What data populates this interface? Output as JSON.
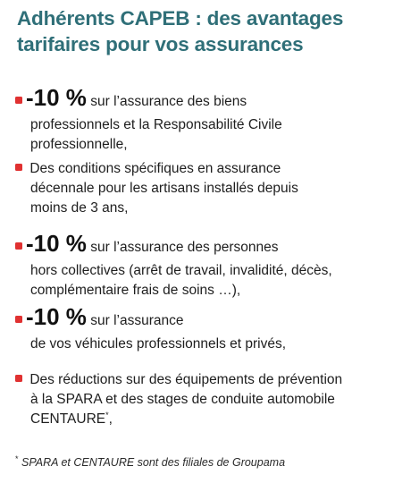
{
  "title": {
    "line1": "Adhérents CAPEB : des avantages",
    "line2": "tarifaires pour vos assurances"
  },
  "items": [
    {
      "discount": "-10 %",
      "lines": [
        "sur l’assurance des biens",
        "professionnels et la Responsabilité Civile",
        "professionnelle,"
      ]
    },
    {
      "lines": [
        "Des conditions spécifiques en assurance",
        "décennale pour les artisans installés depuis",
        "moins de 3 ans,"
      ]
    },
    {
      "discount": "-10 %",
      "lines": [
        "sur l’assurance des personnes",
        "hors collectives (arrêt de travail, invalidité, décès,",
        "complémentaire frais de soins …),"
      ]
    },
    {
      "discount": "-10 %",
      "lines": [
        "sur l’assurance",
        "de vos véhicules professionnels et privés,"
      ]
    },
    {
      "lines": [
        "Des réductions sur des équipements de prévention",
        "à la SPARA et des stages de conduite automobile",
        "CENTAURE"
      ],
      "footnote_mark": "*",
      "tail": ","
    }
  ],
  "footnote": {
    "mark": "*",
    "text": "SPARA et CENTAURE sont des filiales de Groupama"
  },
  "colors": {
    "title": "#2f6f78",
    "bullet": "#e03131"
  },
  "icons": {
    "bullet": "red-square-bullet"
  }
}
